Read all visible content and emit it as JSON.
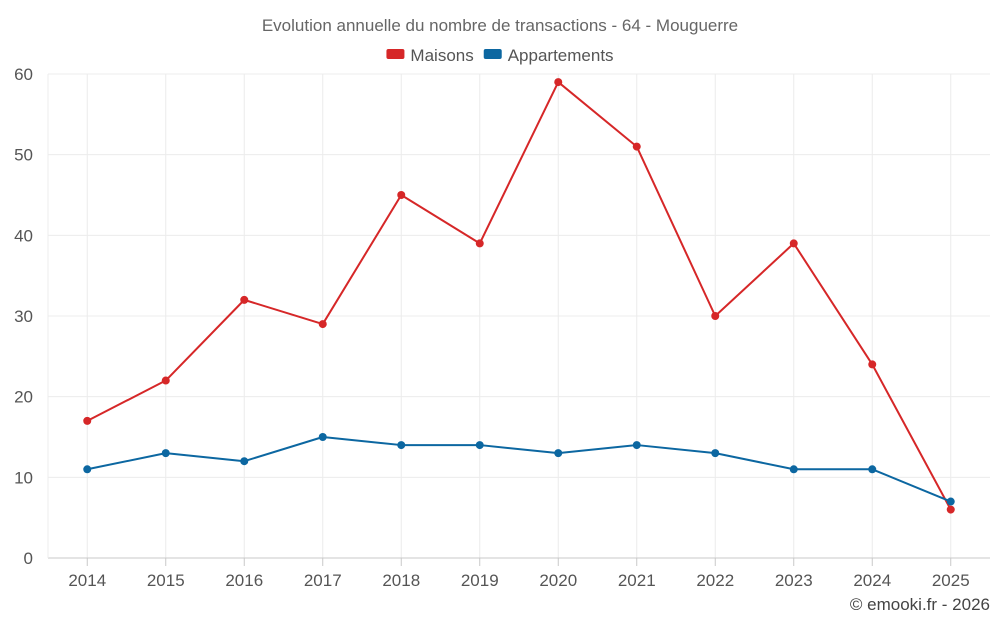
{
  "chart_data": {
    "type": "line",
    "title": "Evolution annuelle du nombre de transactions - 64 - Mouguerre",
    "categories": [
      "2014",
      "2015",
      "2016",
      "2017",
      "2018",
      "2019",
      "2020",
      "2021",
      "2022",
      "2023",
      "2024",
      "2025"
    ],
    "series": [
      {
        "name": "Maisons",
        "color": "#d62728",
        "values": [
          17,
          22,
          32,
          29,
          45,
          39,
          59,
          51,
          30,
          39,
          24,
          6
        ]
      },
      {
        "name": "Appartements",
        "color": "#0c67a1",
        "values": [
          11,
          13,
          12,
          15,
          14,
          14,
          13,
          14,
          13,
          11,
          11,
          7
        ]
      }
    ],
    "ylim": [
      0,
      60
    ],
    "yticks": [
      0,
      10,
      20,
      30,
      40,
      50,
      60
    ],
    "xlabel": "",
    "ylabel": "",
    "grid": true,
    "legend": "top-center"
  },
  "credit": "© emooki.fr - 2026"
}
